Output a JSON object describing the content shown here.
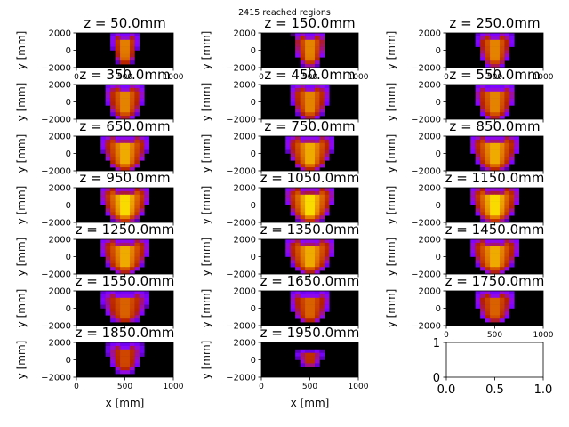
{
  "suptitle": "2415 reached regions",
  "chart_data": {
    "type": "heatmap",
    "title": "2415 reached regions",
    "xlabel": "x [mm]",
    "ylabel": "y [mm]",
    "xlim": [
      0,
      1000
    ],
    "ylim": [
      -2000,
      2000
    ],
    "x_ticks": [
      "0",
      "500",
      "1000"
    ],
    "y_ticks": [
      "2000",
      "0",
      "−2000"
    ],
    "colormap": "gnuplot",
    "panels": [
      {
        "title": "z = 50.0mm",
        "z": 50.0,
        "half_width": 0.28,
        "y_top": 0.05,
        "y_bot": 0.92,
        "shape": 0.6
      },
      {
        "title": "z = 150.0mm",
        "z": 150.0,
        "half_width": 0.35,
        "y_top": 0.05,
        "y_bot": 0.95,
        "shape": 0.6
      },
      {
        "title": "z = 250.0mm",
        "z": 250.0,
        "half_width": 0.38,
        "y_top": 0.05,
        "y_bot": 0.97,
        "shape": 0.6
      },
      {
        "title": "z = 350.0mm",
        "z": 350.0,
        "half_width": 0.42,
        "y_top": 0.05,
        "y_bot": 0.98,
        "shape": 0.6
      },
      {
        "title": "z = 450.0mm",
        "z": 450.0,
        "half_width": 0.42,
        "y_top": 0.05,
        "y_bot": 0.98,
        "shape": 0.6
      },
      {
        "title": "z = 550.0mm",
        "z": 550.0,
        "half_width": 0.44,
        "y_top": 0.05,
        "y_bot": 0.98,
        "shape": 0.6
      },
      {
        "title": "z = 650.0mm",
        "z": 650.0,
        "half_width": 0.5,
        "y_top": 0.0,
        "y_bot": 0.98,
        "shape": 0.7
      },
      {
        "title": "z = 750.0mm",
        "z": 750.0,
        "half_width": 0.5,
        "y_top": 0.0,
        "y_bot": 0.98,
        "shape": 0.7
      },
      {
        "title": "z = 850.0mm",
        "z": 850.0,
        "half_width": 0.52,
        "y_top": 0.0,
        "y_bot": 0.98,
        "shape": 0.7
      },
      {
        "title": "z = 950.0mm",
        "z": 950.0,
        "half_width": 0.52,
        "y_top": 0.0,
        "y_bot": 0.98,
        "shape": 0.8
      },
      {
        "title": "z = 1050.0mm",
        "z": 1050.0,
        "half_width": 0.52,
        "y_top": 0.0,
        "y_bot": 0.98,
        "shape": 0.8
      },
      {
        "title": "z = 1150.0mm",
        "z": 1150.0,
        "half_width": 0.52,
        "y_top": 0.0,
        "y_bot": 0.98,
        "shape": 0.8
      },
      {
        "title": "z = 1250.0mm",
        "z": 1250.0,
        "half_width": 0.52,
        "y_top": 0.0,
        "y_bot": 0.96,
        "shape": 0.7
      },
      {
        "title": "z = 1350.0mm",
        "z": 1350.0,
        "half_width": 0.52,
        "y_top": 0.0,
        "y_bot": 0.96,
        "shape": 0.7
      },
      {
        "title": "z = 1450.0mm",
        "z": 1450.0,
        "half_width": 0.52,
        "y_top": 0.0,
        "y_bot": 0.96,
        "shape": 0.7
      },
      {
        "title": "z = 1550.0mm",
        "z": 1550.0,
        "half_width": 0.5,
        "y_top": 0.05,
        "y_bot": 0.92,
        "shape": 0.5
      },
      {
        "title": "z = 1650.0mm",
        "z": 1650.0,
        "half_width": 0.44,
        "y_top": 0.05,
        "y_bot": 0.92,
        "shape": 0.5
      },
      {
        "title": "z = 1750.0mm",
        "z": 1750.0,
        "half_width": 0.42,
        "y_top": 0.05,
        "y_bot": 0.9,
        "shape": 0.5
      },
      {
        "title": "z = 1850.0mm",
        "z": 1850.0,
        "half_width": 0.38,
        "y_top": 0.05,
        "y_bot": 0.85,
        "shape": 0.4
      },
      {
        "title": "z = 1950.0mm",
        "z": 1950.0,
        "half_width": 0.28,
        "y_top": 0.25,
        "y_bot": 0.7,
        "shape": 0.3
      }
    ],
    "empty_panel": {
      "x_ticks": [
        "0.0",
        "0.5",
        "1.0"
      ],
      "y_ticks": [
        "0",
        "1"
      ]
    }
  }
}
